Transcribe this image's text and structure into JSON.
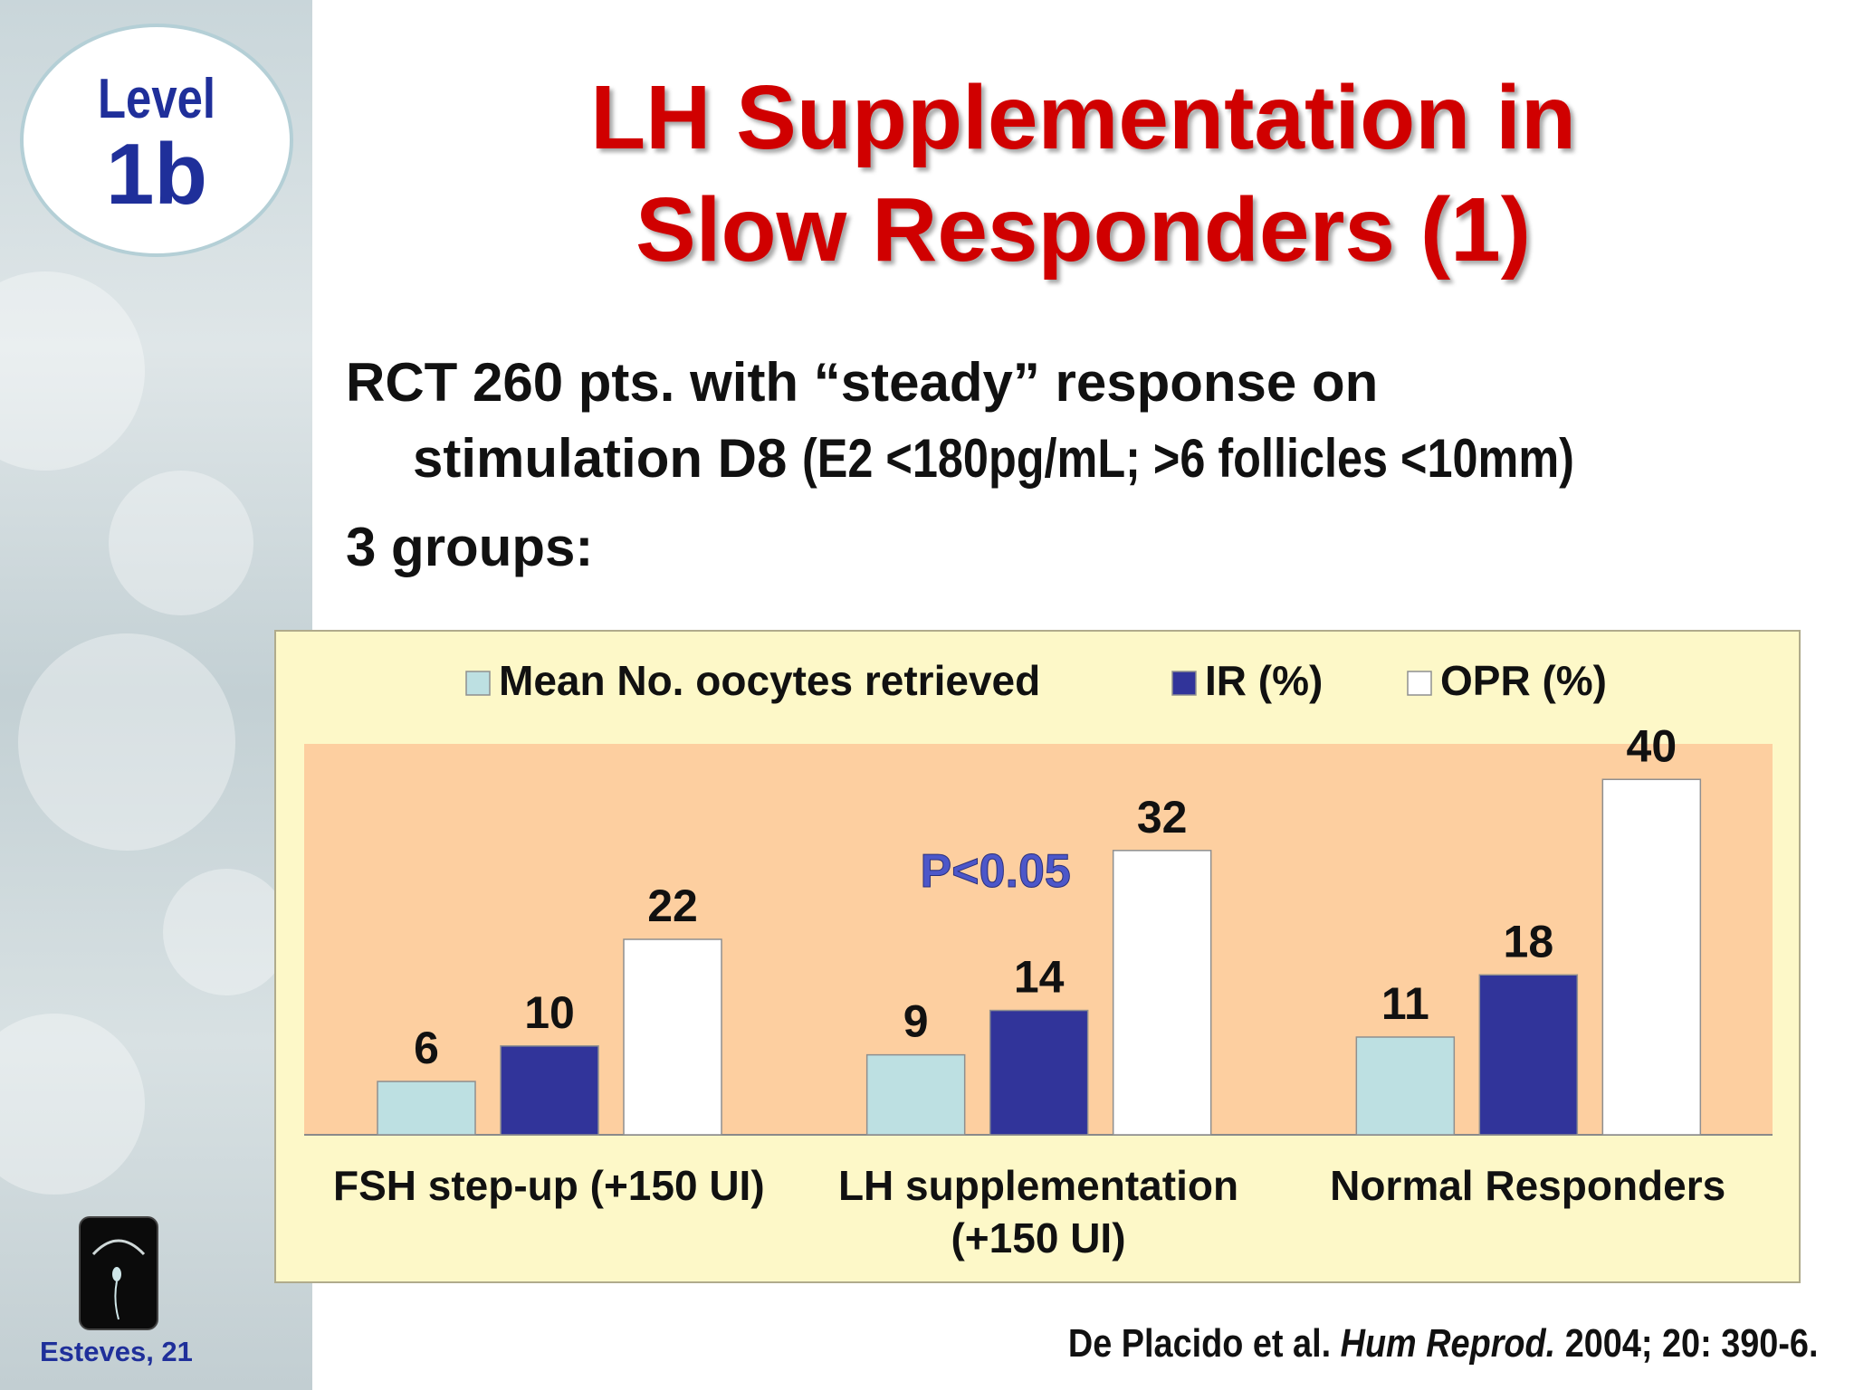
{
  "level_badge": {
    "word": "Level",
    "value": "1b"
  },
  "title_lines": [
    "LH Supplementation in",
    "Slow Responders (1)"
  ],
  "body": {
    "line1": "RCT 260 pts. with “steady” response on",
    "line2_main": "stimulation D8 ",
    "line2_condition": "(E2 <180pg/mL; >6 follicles <10mm)",
    "line3": "3 groups:"
  },
  "sidebar_footer": "Esteves, 21",
  "citation": {
    "authors": "De Placido et al. ",
    "journal": "Hum Reprod.",
    "details": " 2004; 20: 390-6."
  },
  "colors": {
    "oocytes": "#bde0e2",
    "ir": "#31349a",
    "opr": "#ffffff",
    "plot_bg": "#fdcfa0",
    "chart_bg": "#fdf8c8",
    "pvalue": "#4c57c9",
    "title": "#d00000"
  },
  "chart_data": {
    "type": "bar",
    "categories": [
      [
        "FSH step-up (+150 UI)"
      ],
      [
        "LH supplementation",
        "(+150 UI)"
      ],
      [
        "Normal Responders"
      ]
    ],
    "series": [
      {
        "name": "Mean No. oocytes retrieved",
        "values": [
          6,
          9,
          11
        ]
      },
      {
        "name": "IR (%)",
        "values": [
          10,
          14,
          18
        ]
      },
      {
        "name": "OPR (%)",
        "values": [
          22,
          32,
          40
        ]
      }
    ],
    "ylim": [
      0,
      44
    ],
    "legend": "top",
    "grid": false,
    "annotation": {
      "text": "P<0.05",
      "category": 1
    }
  }
}
